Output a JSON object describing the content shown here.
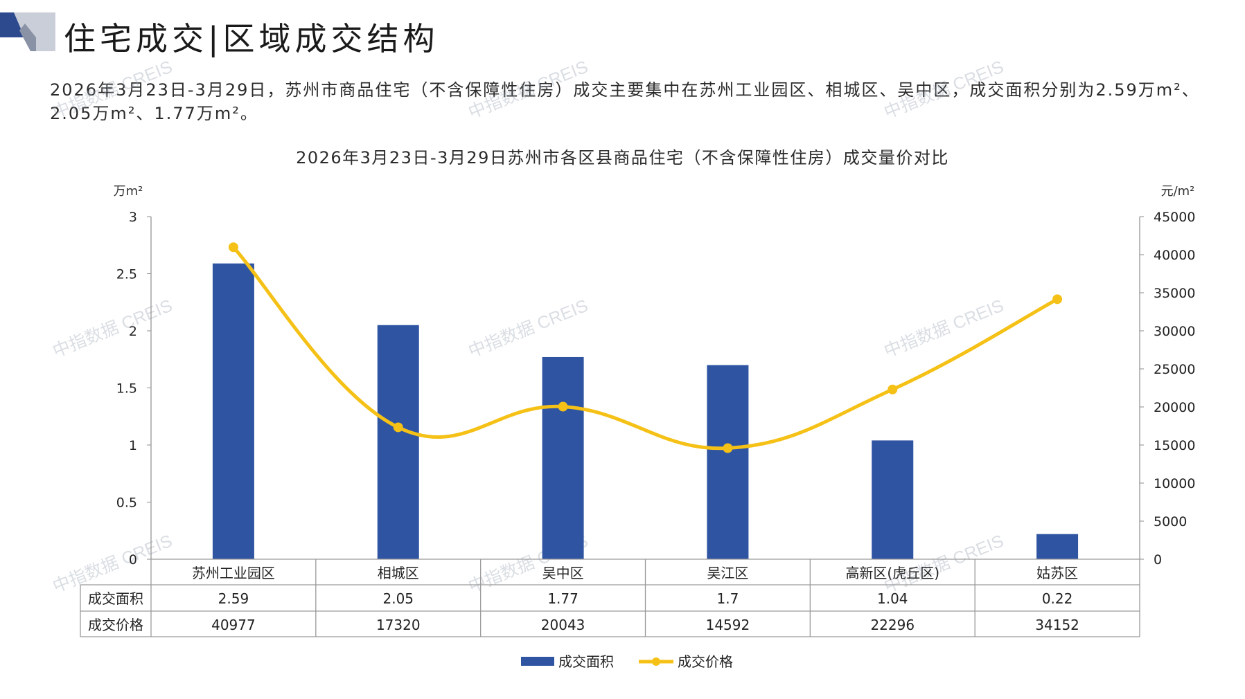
{
  "header": {
    "title": "住宅成交|区域成交结构"
  },
  "summary": {
    "text": "2026年3月23日-3月29日，苏州市商品住宅（不含保障性住房）成交主要集中在苏州工业园区、相城区、吴中区，成交面积分别为2.59万m²、2.05万m²、1.77万m²。"
  },
  "watermark": "中指数据 CREIS",
  "colors": {
    "bar": "#2E54A2",
    "line": "#F5C116",
    "logo_dark": "#2E4A8E",
    "logo_light": "#C9CED8"
  },
  "chart_data": {
    "type": "bar",
    "title": "2026年3月23日-3月29日苏州市各区县商品住宅（不含保障性住房）成交量价对比",
    "y_left_unit": "万m²",
    "y_right_unit": "元/m²",
    "y_left_ticks": [
      "3",
      "2.5",
      "2",
      "1.5",
      "1",
      "0.5",
      "0"
    ],
    "y_right_ticks": [
      "45000",
      "40000",
      "35000",
      "30000",
      "25000",
      "20000",
      "15000",
      "10000",
      "5000",
      "0"
    ],
    "ylim_left": [
      0,
      3
    ],
    "ylim_right": [
      0,
      45000
    ],
    "categories": [
      "苏州工业园区",
      "相城区",
      "吴中区",
      "吴江区",
      "高新区(虎丘区)",
      "姑苏区"
    ],
    "series": [
      {
        "name": "成交面积",
        "type": "bar",
        "axis": "left",
        "values": [
          2.59,
          2.05,
          1.77,
          1.7,
          1.04,
          0.22
        ],
        "labels": [
          "2.59",
          "2.05",
          "1.77",
          "1.7",
          "1.04",
          "0.22"
        ]
      },
      {
        "name": "成交价格",
        "type": "line",
        "axis": "right",
        "values": [
          40977,
          17320,
          20043,
          14592,
          22296,
          34152
        ],
        "labels": [
          "40977",
          "17320",
          "20043",
          "14592",
          "22296",
          "34152"
        ]
      }
    ],
    "legend": "bottom",
    "data_table": true
  }
}
